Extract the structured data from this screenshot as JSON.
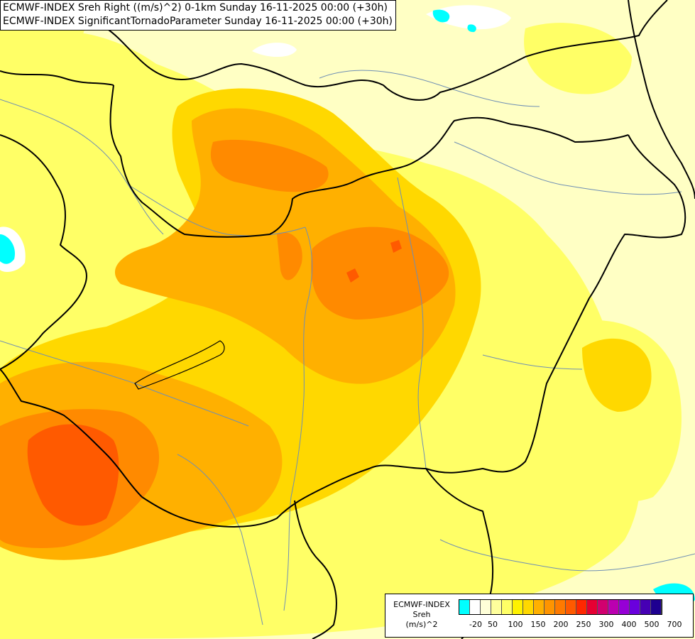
{
  "title": {
    "line1": "ECMWF-INDEX Sreh Right ((m/s)^2) 0-1km Sunday 16-11-2025 00:00 (+30h)",
    "line2": "ECMWF-INDEX SignificantTornadoParameter Sunday 16-11-2025 00:00 (+30h)"
  },
  "legend": {
    "model": "ECMWF-INDEX",
    "variable": "Sreh",
    "unit": "(m/s)^2",
    "colors": [
      "#00ffff",
      "#ffffff",
      "#ffffd8",
      "#ffff9c",
      "#ffff66",
      "#fff200",
      "#ffd800",
      "#ffb000",
      "#ff9400",
      "#ff7a00",
      "#ff5a00",
      "#ff2800",
      "#e60033",
      "#d1006f",
      "#bb00b0",
      "#9600d6",
      "#6a00dd",
      "#4600b4",
      "#1e0090"
    ],
    "tick_labels": [
      "-20",
      "50",
      "100",
      "150",
      "200",
      "250",
      "300",
      "400",
      "500",
      "700"
    ]
  },
  "colors": {
    "light_yellow": "#ffffc4",
    "yellow": "#ffff66",
    "gold": "#ffd800",
    "orange": "#ffb000",
    "dark_orange": "#ff8a00",
    "red_orange": "#ff5a00",
    "cyan": "#00ffff",
    "border_line": "#000000",
    "river_line": "#6f8fb4"
  }
}
